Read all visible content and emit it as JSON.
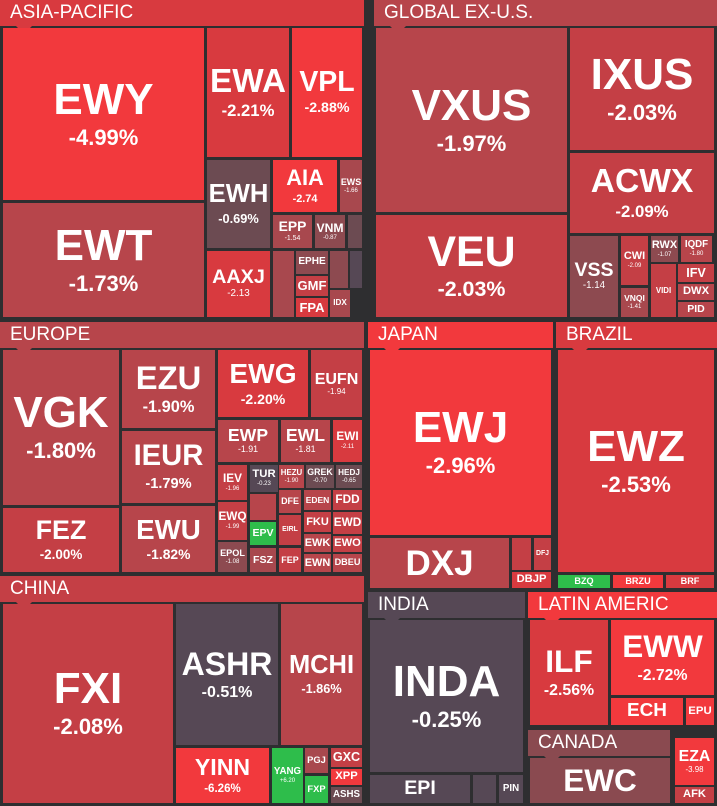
{
  "sections": [
    {
      "title": "ASIA-PACIFIC",
      "tiles": [
        {
          "ticker": "EWY",
          "change": "-4.99%"
        },
        {
          "ticker": "EWT",
          "change": "-1.73%"
        },
        {
          "ticker": "EWA",
          "change": "-2.21%"
        },
        {
          "ticker": "VPL",
          "change": "-2.88%"
        },
        {
          "ticker": "EWH",
          "change": "-0.69%"
        },
        {
          "ticker": "AAXJ",
          "change": "-2.13"
        },
        {
          "ticker": "AIA",
          "change": "-2.74"
        },
        {
          "ticker": "EWS",
          "change": "-1.66"
        },
        {
          "ticker": "EPP",
          "change": "-1.54"
        },
        {
          "ticker": "VNM",
          "change": "-0.87"
        },
        {
          "ticker": "EPHE"
        },
        {
          "ticker": "GMF"
        },
        {
          "ticker": "FPA"
        },
        {
          "ticker": "IDX"
        }
      ]
    },
    {
      "title": "GLOBAL EX-U.S.",
      "tiles": [
        {
          "ticker": "VXUS",
          "change": "-1.97%"
        },
        {
          "ticker": "VEU",
          "change": "-2.03%"
        },
        {
          "ticker": "IXUS",
          "change": "-2.03%"
        },
        {
          "ticker": "ACWX",
          "change": "-2.09%"
        },
        {
          "ticker": "VSS",
          "change": "-1.14"
        },
        {
          "ticker": "CWI",
          "change": "-2.09"
        },
        {
          "ticker": "VNQI",
          "change": "-1.41"
        },
        {
          "ticker": "RWX",
          "change": "-1.07"
        },
        {
          "ticker": "IQDF",
          "change": "-1.80"
        },
        {
          "ticker": "VIDI"
        },
        {
          "ticker": "IFV"
        },
        {
          "ticker": "DWX"
        },
        {
          "ticker": "PID"
        }
      ]
    },
    {
      "title": "EUROPE",
      "tiles": [
        {
          "ticker": "VGK",
          "change": "-1.80%"
        },
        {
          "ticker": "FEZ",
          "change": "-2.00%"
        },
        {
          "ticker": "EZU",
          "change": "-1.90%"
        },
        {
          "ticker": "IEUR",
          "change": "-1.79%"
        },
        {
          "ticker": "EWU",
          "change": "-1.82%"
        },
        {
          "ticker": "EWG",
          "change": "-2.20%"
        },
        {
          "ticker": "EUFN",
          "change": "-1.94"
        },
        {
          "ticker": "EWP",
          "change": "-1.91"
        },
        {
          "ticker": "EWL",
          "change": "-1.81"
        },
        {
          "ticker": "EWI",
          "change": "-2.11"
        },
        {
          "ticker": "IEV",
          "change": "-1.96"
        },
        {
          "ticker": "TUR",
          "change": "-0.23"
        },
        {
          "ticker": "HEZU",
          "change": "-1.90"
        },
        {
          "ticker": "GREK",
          "change": "-0.70"
        },
        {
          "ticker": "HEDJ",
          "change": "-0.65"
        },
        {
          "ticker": "EWQ",
          "change": "-1.99"
        },
        {
          "ticker": "EPV"
        },
        {
          "ticker": "EPOL",
          "change": "-1.08"
        },
        {
          "ticker": "FSZ"
        },
        {
          "ticker": "DFE"
        },
        {
          "ticker": "EDEN"
        },
        {
          "ticker": "FDD"
        },
        {
          "ticker": "EIRL"
        },
        {
          "ticker": "FKU"
        },
        {
          "ticker": "EWD"
        },
        {
          "ticker": "FEP"
        },
        {
          "ticker": "EWK"
        },
        {
          "ticker": "EWO"
        },
        {
          "ticker": "EWN"
        },
        {
          "ticker": "DBEU"
        }
      ]
    },
    {
      "title": "JAPAN",
      "tiles": [
        {
          "ticker": "EWJ",
          "change": "-2.96%"
        },
        {
          "ticker": "DXJ"
        },
        {
          "ticker": "DFJ"
        },
        {
          "ticker": "DBJP"
        }
      ]
    },
    {
      "title": "BRAZIL",
      "tiles": [
        {
          "ticker": "EWZ",
          "change": "-2.53%"
        },
        {
          "ticker": "BZQ"
        },
        {
          "ticker": "BRZU"
        },
        {
          "ticker": "BRF"
        }
      ]
    },
    {
      "title": "CHINA",
      "tiles": [
        {
          "ticker": "FXI",
          "change": "-2.08%"
        },
        {
          "ticker": "ASHR",
          "change": "-0.51%"
        },
        {
          "ticker": "MCHI",
          "change": "-1.86%"
        },
        {
          "ticker": "YINN",
          "change": "-6.26%"
        },
        {
          "ticker": "YANG",
          "change": "+6.20"
        },
        {
          "ticker": "PGJ"
        },
        {
          "ticker": "FXP"
        },
        {
          "ticker": "GXC"
        },
        {
          "ticker": "XPP"
        },
        {
          "ticker": "ASHS"
        }
      ]
    },
    {
      "title": "INDIA",
      "tiles": [
        {
          "ticker": "INDA",
          "change": "-0.25%"
        },
        {
          "ticker": "EPI"
        },
        {
          "ticker": "PIN"
        }
      ]
    },
    {
      "title": "LATIN AMERIC",
      "tiles": [
        {
          "ticker": "ILF",
          "change": "-2.56%"
        },
        {
          "ticker": "EWW",
          "change": "-2.72%"
        },
        {
          "ticker": "ECH"
        },
        {
          "ticker": "EPU"
        }
      ]
    },
    {
      "title": "CANADA",
      "tiles": [
        {
          "ticker": "EWC"
        }
      ]
    },
    {
      "tiles": [
        {
          "ticker": "EZA",
          "change": "-3.98"
        },
        {
          "ticker": "AFK"
        }
      ]
    }
  ]
}
